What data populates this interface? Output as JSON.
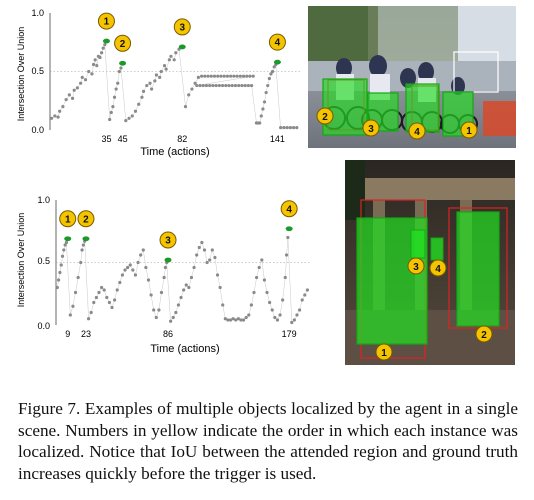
{
  "figure": {
    "caption_label": "Figure 7.",
    "caption_text": "Examples of multiple objects localized by the agent in a single scene. Numbers in yellow indicate the order in which each instance was localized. Notice that IoU between the attended region and ground truth increases quickly before the trigger is used."
  },
  "colors": {
    "marker": "#8a8a8a",
    "trigger": "#1a9a2a",
    "badge_fill": "#f5c400",
    "badge_stroke": "#7a5a00",
    "box_green": "#22dd22",
    "box_red": "#dd2222"
  },
  "chart_data": [
    {
      "type": "scatter",
      "xlabel": "Time (actions)",
      "ylabel": "Intersection Over Union",
      "ylim": [
        0,
        1
      ],
      "yticks": [
        "0.0",
        "0.5",
        "1.0"
      ],
      "xlim": [
        0,
        155
      ],
      "xticks": [
        35,
        45,
        82,
        141
      ],
      "grid": "horizontal dotted line at 0.5",
      "badges": [
        "1",
        "2",
        "3",
        "4"
      ],
      "triggers": [
        {
          "order": 1,
          "x": 35,
          "y": 0.76
        },
        {
          "order": 2,
          "x": 45,
          "y": 0.57
        },
        {
          "order": 3,
          "x": 82,
          "y": 0.71
        },
        {
          "order": 4,
          "x": 141,
          "y": 0.58
        }
      ],
      "points": [
        [
          1,
          0.1
        ],
        [
          3,
          0.12
        ],
        [
          5,
          0.11
        ],
        [
          6,
          0.16
        ],
        [
          8,
          0.2
        ],
        [
          10,
          0.26
        ],
        [
          12,
          0.3
        ],
        [
          14,
          0.27
        ],
        [
          15,
          0.34
        ],
        [
          17,
          0.36
        ],
        [
          19,
          0.4
        ],
        [
          20,
          0.45
        ],
        [
          22,
          0.43
        ],
        [
          24,
          0.5
        ],
        [
          26,
          0.48
        ],
        [
          27,
          0.56
        ],
        [
          28,
          0.6
        ],
        [
          29,
          0.55
        ],
        [
          30,
          0.63
        ],
        [
          31,
          0.62
        ],
        [
          32,
          0.66
        ],
        [
          33,
          0.7
        ],
        [
          34,
          0.73
        ],
        [
          37,
          0.09
        ],
        [
          38,
          0.15
        ],
        [
          39,
          0.2
        ],
        [
          40,
          0.28
        ],
        [
          41,
          0.35
        ],
        [
          42,
          0.4
        ],
        [
          43,
          0.5
        ],
        [
          44,
          0.53
        ],
        [
          47,
          0.08
        ],
        [
          49,
          0.1
        ],
        [
          51,
          0.12
        ],
        [
          53,
          0.16
        ],
        [
          55,
          0.22
        ],
        [
          57,
          0.28
        ],
        [
          58,
          0.33
        ],
        [
          60,
          0.38
        ],
        [
          62,
          0.4
        ],
        [
          63,
          0.35
        ],
        [
          65,
          0.42
        ],
        [
          66,
          0.47
        ],
        [
          68,
          0.45
        ],
        [
          69,
          0.5
        ],
        [
          71,
          0.55
        ],
        [
          72,
          0.52
        ],
        [
          74,
          0.6
        ],
        [
          75,
          0.63
        ],
        [
          77,
          0.6
        ],
        [
          78,
          0.66
        ],
        [
          80,
          0.69
        ],
        [
          84,
          0.2
        ],
        [
          86,
          0.3
        ],
        [
          88,
          0.35
        ],
        [
          90,
          0.4
        ],
        [
          92,
          0.45
        ],
        [
          94,
          0.46
        ],
        [
          96,
          0.46
        ],
        [
          98,
          0.46
        ],
        [
          100,
          0.46
        ],
        [
          102,
          0.46
        ],
        [
          104,
          0.46
        ],
        [
          106,
          0.46
        ],
        [
          108,
          0.46
        ],
        [
          110,
          0.46
        ],
        [
          112,
          0.46
        ],
        [
          114,
          0.46
        ],
        [
          116,
          0.46
        ],
        [
          118,
          0.46
        ],
        [
          120,
          0.46
        ],
        [
          122,
          0.46
        ],
        [
          124,
          0.46
        ],
        [
          126,
          0.46
        ],
        [
          91,
          0.38
        ],
        [
          93,
          0.38
        ],
        [
          95,
          0.38
        ],
        [
          97,
          0.38
        ],
        [
          99,
          0.38
        ],
        [
          101,
          0.38
        ],
        [
          103,
          0.38
        ],
        [
          105,
          0.38
        ],
        [
          107,
          0.38
        ],
        [
          109,
          0.38
        ],
        [
          111,
          0.38
        ],
        [
          113,
          0.38
        ],
        [
          115,
          0.38
        ],
        [
          117,
          0.38
        ],
        [
          119,
          0.38
        ],
        [
          121,
          0.38
        ],
        [
          123,
          0.38
        ],
        [
          125,
          0.38
        ],
        [
          128,
          0.06
        ],
        [
          129,
          0.06
        ],
        [
          130,
          0.06
        ],
        [
          131,
          0.12
        ],
        [
          132,
          0.18
        ],
        [
          133,
          0.24
        ],
        [
          134,
          0.32
        ],
        [
          135,
          0.38
        ],
        [
          136,
          0.44
        ],
        [
          137,
          0.48
        ],
        [
          138,
          0.5
        ],
        [
          139,
          0.54
        ],
        [
          140,
          0.56
        ],
        [
          143,
          0.02
        ],
        [
          145,
          0.02
        ],
        [
          147,
          0.02
        ],
        [
          149,
          0.02
        ],
        [
          151,
          0.02
        ],
        [
          153,
          0.02
        ]
      ]
    },
    {
      "type": "scatter",
      "xlabel": "Time (actions)",
      "ylabel": "Intersection Over Union",
      "ylim": [
        0,
        1
      ],
      "yticks": [
        "0.0",
        "0.5",
        "1.0"
      ],
      "xlim": [
        0,
        195
      ],
      "xticks": [
        9,
        23,
        86,
        179
      ],
      "grid": "horizontal dotted line at 0.5",
      "badges": [
        "1",
        "2",
        "3",
        "4"
      ],
      "triggers": [
        {
          "order": 1,
          "x": 9,
          "y": 0.69
        },
        {
          "order": 2,
          "x": 23,
          "y": 0.69
        },
        {
          "order": 3,
          "x": 86,
          "y": 0.52
        },
        {
          "order": 4,
          "x": 179,
          "y": 0.77
        }
      ],
      "points": [
        [
          1,
          0.3
        ],
        [
          2,
          0.36
        ],
        [
          3,
          0.42
        ],
        [
          4,
          0.48
        ],
        [
          5,
          0.55
        ],
        [
          6,
          0.6
        ],
        [
          7,
          0.64
        ],
        [
          8,
          0.66
        ],
        [
          11,
          0.08
        ],
        [
          13,
          0.15
        ],
        [
          15,
          0.26
        ],
        [
          17,
          0.38
        ],
        [
          19,
          0.5
        ],
        [
          20,
          0.6
        ],
        [
          21,
          0.64
        ],
        [
          22,
          0.67
        ],
        [
          25,
          0.05
        ],
        [
          27,
          0.1
        ],
        [
          29,
          0.18
        ],
        [
          31,
          0.22
        ],
        [
          33,
          0.26
        ],
        [
          35,
          0.3
        ],
        [
          37,
          0.28
        ],
        [
          39,
          0.22
        ],
        [
          41,
          0.18
        ],
        [
          43,
          0.14
        ],
        [
          45,
          0.2
        ],
        [
          47,
          0.28
        ],
        [
          49,
          0.34
        ],
        [
          51,
          0.4
        ],
        [
          53,
          0.44
        ],
        [
          55,
          0.46
        ],
        [
          57,
          0.48
        ],
        [
          59,
          0.44
        ],
        [
          61,
          0.4
        ],
        [
          63,
          0.5
        ],
        [
          65,
          0.56
        ],
        [
          67,
          0.6
        ],
        [
          69,
          0.46
        ],
        [
          71,
          0.36
        ],
        [
          73,
          0.24
        ],
        [
          75,
          0.12
        ],
        [
          77,
          0.06
        ],
        [
          79,
          0.12
        ],
        [
          81,
          0.26
        ],
        [
          83,
          0.38
        ],
        [
          84,
          0.46
        ],
        [
          85,
          0.5
        ],
        [
          88,
          0.03
        ],
        [
          90,
          0.06
        ],
        [
          92,
          0.1
        ],
        [
          94,
          0.16
        ],
        [
          96,
          0.22
        ],
        [
          98,
          0.28
        ],
        [
          100,
          0.32
        ],
        [
          102,
          0.3
        ],
        [
          104,
          0.38
        ],
        [
          106,
          0.46
        ],
        [
          108,
          0.56
        ],
        [
          110,
          0.62
        ],
        [
          112,
          0.66
        ],
        [
          114,
          0.6
        ],
        [
          116,
          0.5
        ],
        [
          118,
          0.52
        ],
        [
          120,
          0.6
        ],
        [
          122,
          0.54
        ],
        [
          124,
          0.4
        ],
        [
          126,
          0.3
        ],
        [
          128,
          0.16
        ],
        [
          130,
          0.05
        ],
        [
          132,
          0.04
        ],
        [
          134,
          0.04
        ],
        [
          136,
          0.05
        ],
        [
          138,
          0.04
        ],
        [
          140,
          0.05
        ],
        [
          142,
          0.04
        ],
        [
          144,
          0.04
        ],
        [
          146,
          0.06
        ],
        [
          148,
          0.08
        ],
        [
          150,
          0.16
        ],
        [
          152,
          0.26
        ],
        [
          154,
          0.38
        ],
        [
          156,
          0.46
        ],
        [
          158,
          0.52
        ],
        [
          160,
          0.36
        ],
        [
          162,
          0.26
        ],
        [
          164,
          0.18
        ],
        [
          166,
          0.12
        ],
        [
          168,
          0.06
        ],
        [
          170,
          0.04
        ],
        [
          172,
          0.08
        ],
        [
          174,
          0.2
        ],
        [
          176,
          0.38
        ],
        [
          177,
          0.56
        ],
        [
          178,
          0.7
        ],
        [
          181,
          0.02
        ],
        [
          183,
          0.04
        ],
        [
          185,
          0.08
        ],
        [
          187,
          0.12
        ],
        [
          189,
          0.2
        ],
        [
          191,
          0.24
        ],
        [
          193,
          0.28
        ]
      ]
    }
  ],
  "photos": {
    "top": {
      "badges": [
        "2",
        "3",
        "4",
        "1"
      ]
    },
    "bottom": {
      "badges": [
        "1",
        "3",
        "4",
        "2"
      ]
    }
  }
}
